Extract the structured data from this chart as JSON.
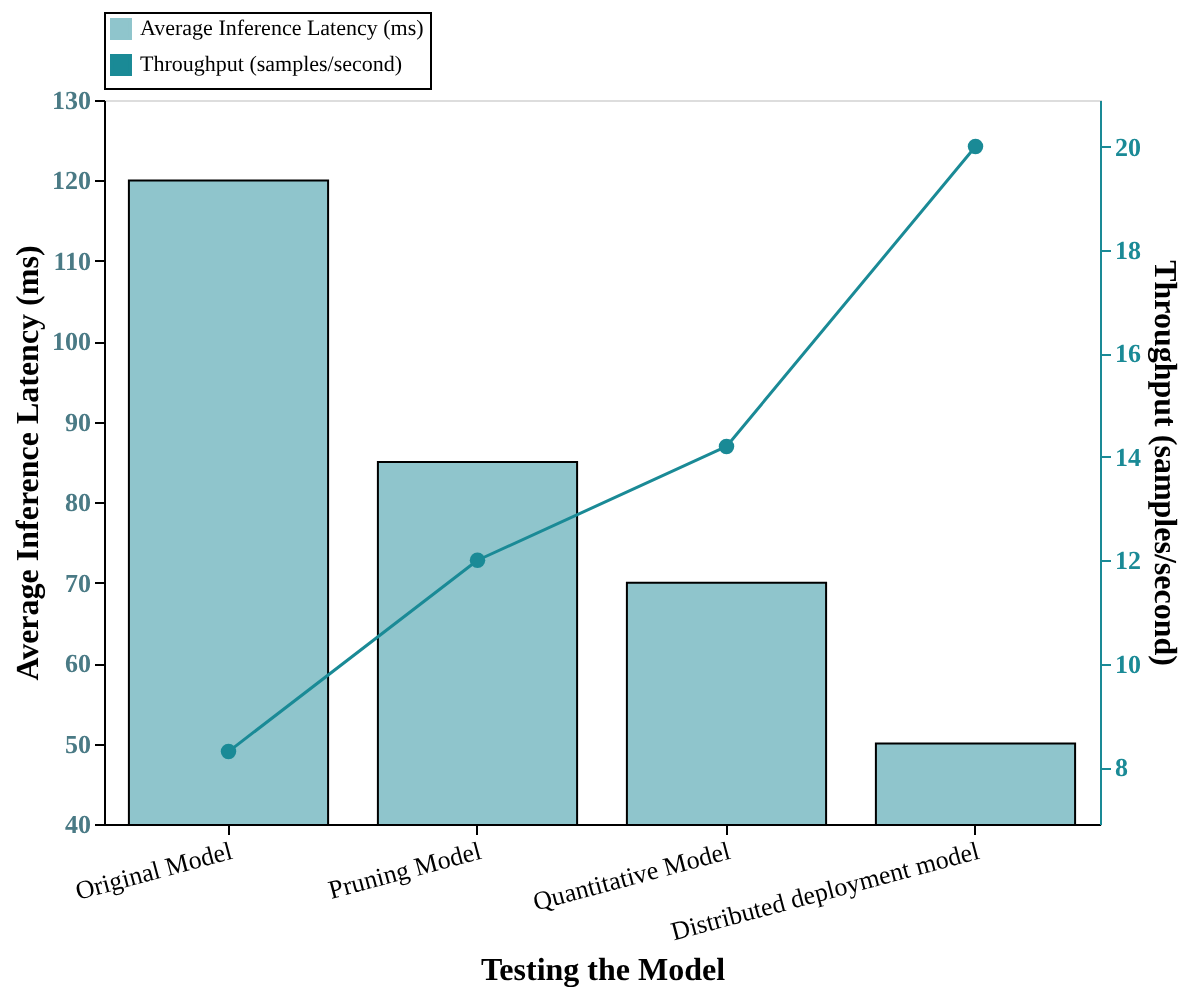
{
  "chart_data": {
    "type": "bar",
    "xlabel": "Testing the Model",
    "ylabel": "Average Inference Latency (ms)",
    "y2label": "Throughput (samples/second)",
    "categories": [
      "Original Model",
      "Pruning Model",
      "Quantitative Model",
      "Distributed deployment model"
    ],
    "series": [
      {
        "name": "Average Inference Latency (ms)",
        "color": "#8fc5cc",
        "values": [
          120,
          85,
          70,
          50
        ]
      },
      {
        "name": "Throughput (samples/second)",
        "type": "line",
        "axis": "y2",
        "color": "#1a8a96",
        "values": [
          8.3,
          12.0,
          14.2,
          20.0
        ]
      }
    ],
    "ylim": [
      40,
      130
    ],
    "yticks": [
      40,
      50,
      60,
      70,
      80,
      90,
      100,
      110,
      120,
      130
    ],
    "y2lim": [
      6.9,
      20.9
    ],
    "y2ticks": [
      8,
      10,
      12,
      14,
      16,
      18,
      20
    ],
    "legend": "top",
    "grid": false,
    "marker": "circle",
    "line_style": "solid"
  }
}
